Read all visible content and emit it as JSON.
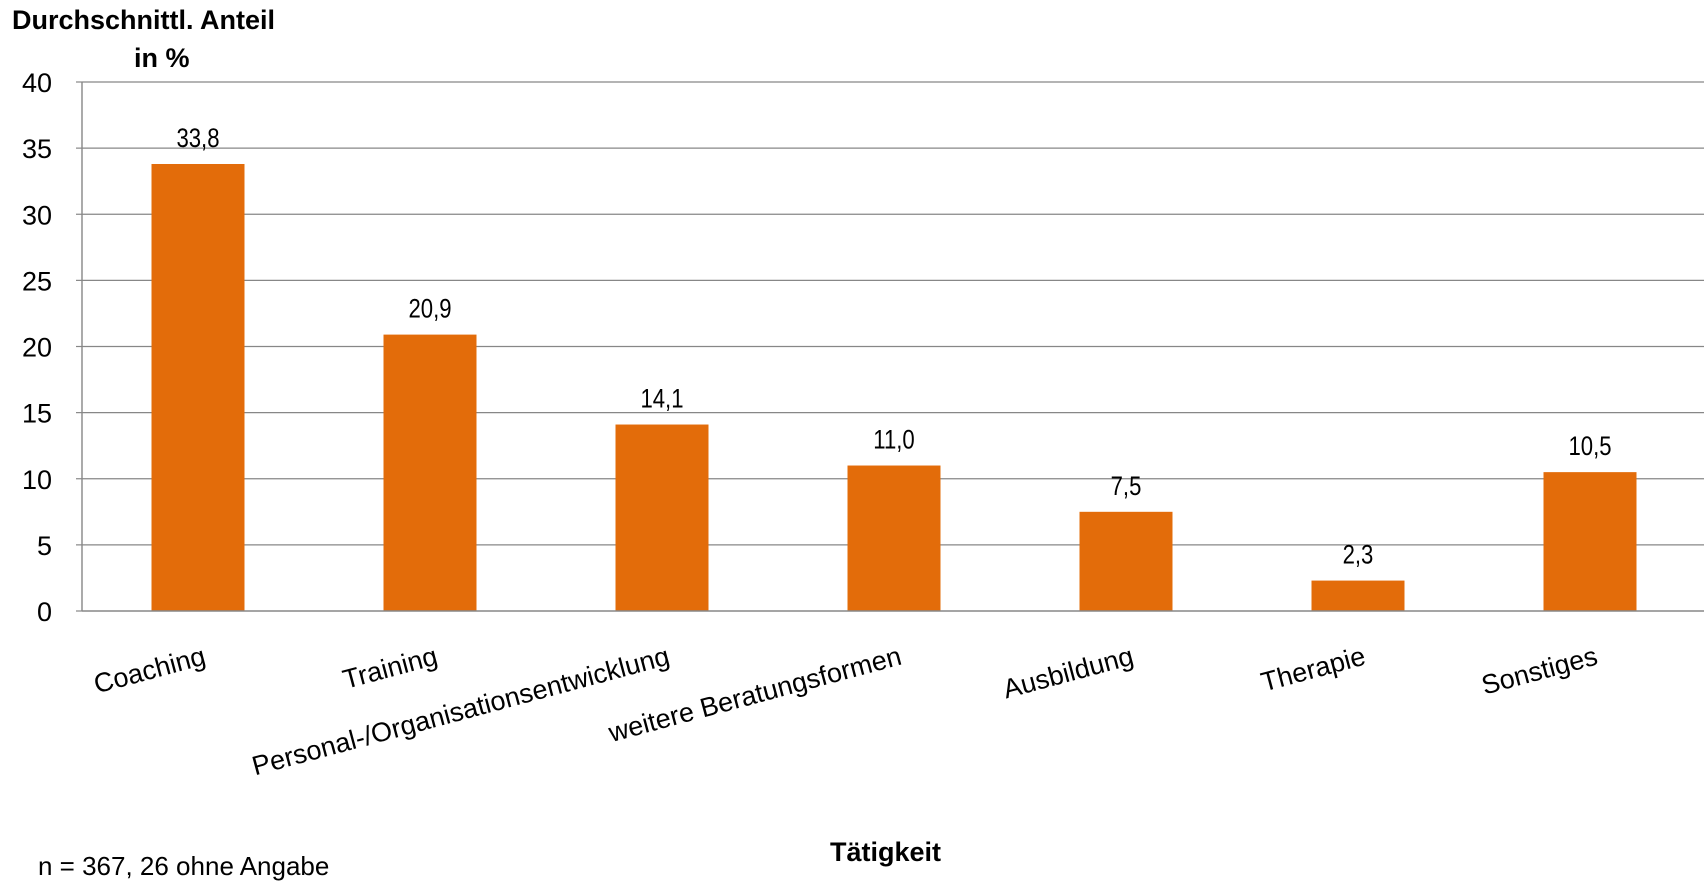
{
  "chart_data": {
    "type": "bar",
    "ylabel_line1": "Durchschnittl. Anteil",
    "ylabel_line2": "in %",
    "xlabel": "Tätigkeit",
    "note": "n = 367, 26 ohne Angabe",
    "categories": [
      "Coaching",
      "Training",
      "Personal-/Organisationsentwicklung",
      "weitere Beratungsformen",
      "Ausbildung",
      "Therapie",
      "Sonstiges"
    ],
    "values": [
      33.8,
      20.9,
      14.1,
      11.0,
      7.5,
      2.3,
      10.5
    ],
    "value_labels": [
      "33,8",
      "20,9",
      "14,1",
      "11,0",
      "7,5",
      "2,3",
      "10,5"
    ],
    "ylim": [
      0,
      40
    ],
    "yticks": [
      0,
      5,
      10,
      15,
      20,
      25,
      30,
      35,
      40
    ],
    "grid": true,
    "legend": "none",
    "colors": {
      "bar": "#E36C0A",
      "grid": "#878787",
      "axis": "#878787"
    }
  }
}
